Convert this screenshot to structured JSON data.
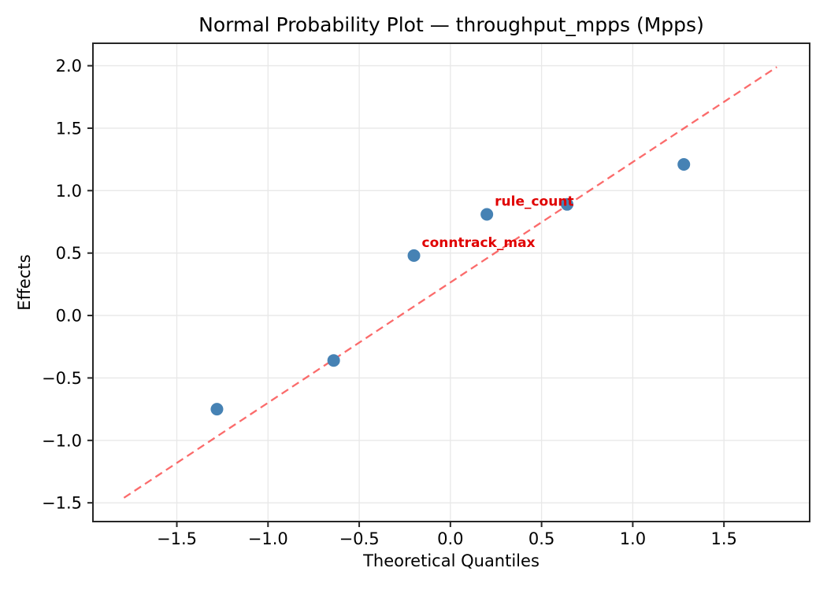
{
  "chart_data": {
    "type": "scatter",
    "title": "Normal Probability Plot — throughput_mpps (Mpps)",
    "xlabel": "Theoretical Quantiles",
    "ylabel": "Effects",
    "xlim": [
      -1.96,
      1.97
    ],
    "ylim": [
      -1.65,
      2.18
    ],
    "x_ticks": [
      -1.5,
      -1.0,
      -0.5,
      0.0,
      0.5,
      1.0,
      1.5
    ],
    "y_ticks": [
      2.0,
      1.5,
      1.0,
      0.5,
      0.0,
      -0.5,
      -1.0,
      -1.5
    ],
    "grid": true,
    "legend": "none",
    "points": [
      {
        "x": -1.28,
        "y": -0.75
      },
      {
        "x": -0.64,
        "y": -0.36
      },
      {
        "x": -0.2,
        "y": 0.48
      },
      {
        "x": 0.2,
        "y": 0.81
      },
      {
        "x": 0.64,
        "y": 0.89
      },
      {
        "x": 1.28,
        "y": 1.21
      }
    ],
    "reference_line": {
      "style": "dashed",
      "x1": -1.79,
      "y1": -1.46,
      "x2": 1.79,
      "y2": 1.99
    },
    "annotations": [
      {
        "text": "conntrack_max",
        "x": -0.2,
        "y": 0.48
      },
      {
        "text": "rule_count",
        "x": 0.2,
        "y": 0.81
      }
    ],
    "style": {
      "marker_color": "#4682B4",
      "reference_line_color": "rgba(250,70,70,0.8)",
      "annotation_color": "#e00000",
      "grid_color": "#e8e8e8",
      "spine_color": "#262626",
      "background": "#ffffff"
    }
  }
}
